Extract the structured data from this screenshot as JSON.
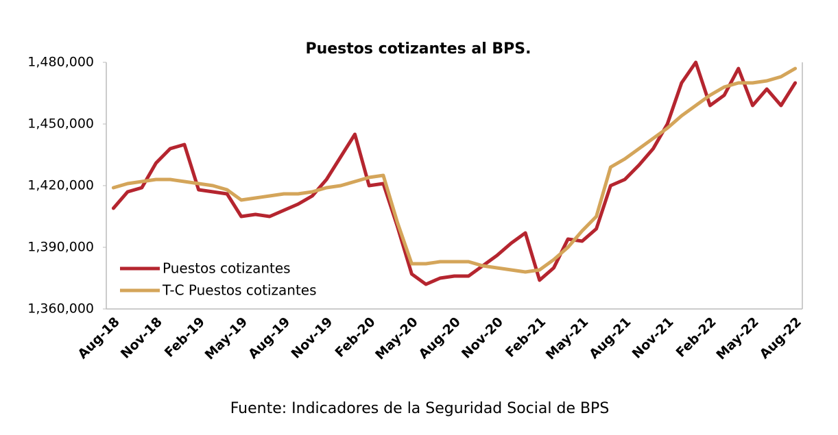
{
  "chart_data": {
    "type": "line",
    "title": "Puestos cotizantes al BPS.",
    "source": "Fuente: Indicadores de la Seguridad Social de BPS",
    "categories": [
      "Aug-18",
      null,
      null,
      "Nov-18",
      null,
      null,
      "Feb-19",
      null,
      null,
      "May-19",
      null,
      null,
      "Aug-19",
      null,
      null,
      "Nov-19",
      null,
      null,
      "Feb-20",
      null,
      null,
      "May-20",
      null,
      null,
      "Aug-20",
      null,
      null,
      "Nov-20",
      null,
      null,
      "Feb-21",
      null,
      null,
      "May-21",
      null,
      null,
      "Aug-21",
      null,
      null,
      "Nov-21",
      null,
      null,
      "Feb-22",
      null,
      null,
      "May-22",
      null,
      null,
      "Aug-22"
    ],
    "series": [
      {
        "name": "Puestos cotizantes",
        "color": "#b5252f",
        "values": [
          1409000,
          1417000,
          1419000,
          1431000,
          1438000,
          1440000,
          1418000,
          1417000,
          1416000,
          1405000,
          1406000,
          1405000,
          1408000,
          1411000,
          1415000,
          1423000,
          1434000,
          1445000,
          1420000,
          1421000,
          1400000,
          1377000,
          1372000,
          1375000,
          1376000,
          1376000,
          1381000,
          1386000,
          1392000,
          1397000,
          1374000,
          1380000,
          1394000,
          1393000,
          1399000,
          1420000,
          1423000,
          1430000,
          1438000,
          1450000,
          1470000,
          1480000,
          1459000,
          1464000,
          1477000,
          1459000,
          1467000,
          1459000,
          1470000
        ]
      },
      {
        "name": "T-C Puestos cotizantes",
        "color": "#d4a55a",
        "values": [
          1419000,
          1421000,
          1422000,
          1423000,
          1423000,
          1422000,
          1421000,
          1420000,
          1418000,
          1413000,
          1414000,
          1415000,
          1416000,
          1416000,
          1417000,
          1419000,
          1420000,
          1422000,
          1424000,
          1425000,
          1402000,
          1382000,
          1382000,
          1383000,
          1383000,
          1383000,
          1381000,
          1380000,
          1379000,
          1378000,
          1379000,
          1384000,
          1390000,
          1398000,
          1405000,
          1429000,
          1433000,
          1438000,
          1443000,
          1448000,
          1454000,
          1459000,
          1464000,
          1468000,
          1470000,
          1470000,
          1471000,
          1473000,
          1477000
        ]
      }
    ],
    "ylim": [
      1360000,
      1480000
    ],
    "yticks": [
      {
        "value": 1360000,
        "label": "1,360,000"
      },
      {
        "value": 1390000,
        "label": "1,390,000"
      },
      {
        "value": 1420000,
        "label": "1,420,000"
      },
      {
        "value": 1450000,
        "label": "1,450,000"
      },
      {
        "value": 1480000,
        "label": "1,480,000"
      }
    ],
    "grid": false,
    "legend": "lower left"
  }
}
